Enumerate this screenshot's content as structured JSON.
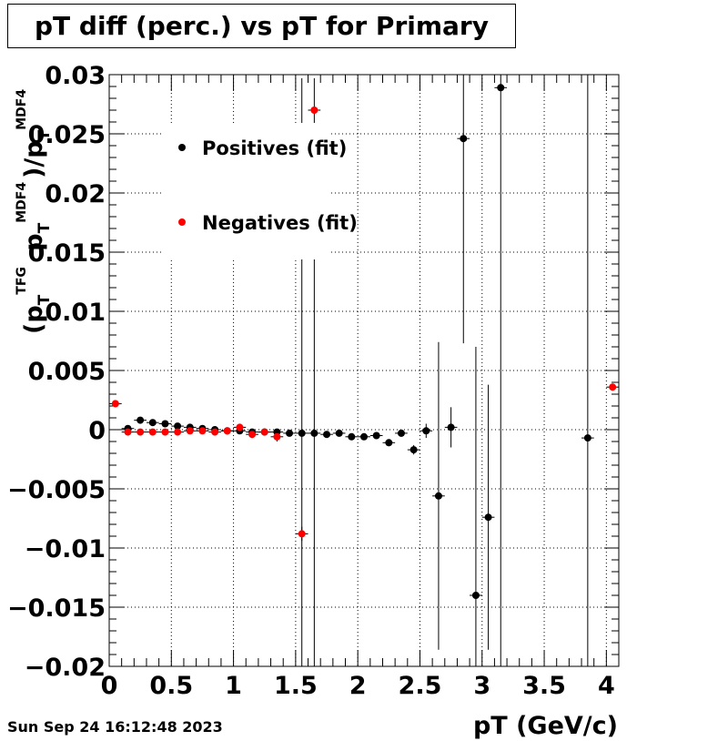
{
  "title": "pT diff (perc.) vs pT for Primary",
  "timestamp": "Sun Sep 24 16:12:48 2023",
  "chart_data": {
    "type": "scatter",
    "title": "pT diff (perc.) vs pT for Primary",
    "xlabel": "pT (GeV/c)",
    "ylabel": "(pT TFG - pT MDF4)/pT MDF4",
    "xlim": [
      0,
      4.1
    ],
    "ylim": [
      -0.02,
      0.03
    ],
    "x_ticks": [
      "0",
      "0.5",
      "1",
      "1.5",
      "2",
      "2.5",
      "3",
      "3.5",
      "4"
    ],
    "y_ticks": [
      "−0.02",
      "−0.015",
      "−0.01",
      "−0.005",
      "0",
      "0.005",
      "0.01",
      "0.015",
      "0.02",
      "0.025",
      "0.03"
    ],
    "grid": true,
    "legend_position": "top-left",
    "series": [
      {
        "name": "Positives (fit)",
        "color": "#000000",
        "points": [
          {
            "x": 0.15,
            "y": 0.0001,
            "err": 0.0002
          },
          {
            "x": 0.25,
            "y": 0.0008,
            "err": 0.0002
          },
          {
            "x": 0.35,
            "y": 0.0006,
            "err": 0.0002
          },
          {
            "x": 0.45,
            "y": 0.0005,
            "err": 0.0002
          },
          {
            "x": 0.55,
            "y": 0.0003,
            "err": 0.0002
          },
          {
            "x": 0.65,
            "y": 0.0002,
            "err": 0.0002
          },
          {
            "x": 0.75,
            "y": 0.0001,
            "err": 0.0002
          },
          {
            "x": 0.85,
            "y": 0.0,
            "err": 0.0002
          },
          {
            "x": 0.95,
            "y": -0.0001,
            "err": 0.0002
          },
          {
            "x": 1.05,
            "y": -0.0001,
            "err": 0.0002
          },
          {
            "x": 1.15,
            "y": -0.0002,
            "err": 0.0002
          },
          {
            "x": 1.25,
            "y": -0.0002,
            "err": 0.0002
          },
          {
            "x": 1.35,
            "y": -0.0002,
            "err": 0.0002
          },
          {
            "x": 1.45,
            "y": -0.0003,
            "err": 0.0002
          },
          {
            "x": 1.55,
            "y": -0.0003,
            "err": 0.03
          },
          {
            "x": 1.65,
            "y": -0.0003,
            "err": 0.03
          },
          {
            "x": 1.75,
            "y": -0.0004,
            "err": 0.0002
          },
          {
            "x": 1.85,
            "y": -0.0003,
            "err": 0.0002
          },
          {
            "x": 1.95,
            "y": -0.0006,
            "err": 0.0002
          },
          {
            "x": 2.05,
            "y": -0.0006,
            "err": 0.0002
          },
          {
            "x": 2.15,
            "y": -0.0005,
            "err": 0.0002
          },
          {
            "x": 2.25,
            "y": -0.0011,
            "err": 0.0003
          },
          {
            "x": 2.35,
            "y": -0.0003,
            "err": 0.0003
          },
          {
            "x": 2.45,
            "y": -0.0017,
            "err": 0.0004
          },
          {
            "x": 2.55,
            "y": -0.0001,
            "err": 0.0006
          },
          {
            "x": 2.65,
            "y": -0.0056,
            "err": 0.013
          },
          {
            "x": 2.75,
            "y": 0.0002,
            "err": 0.0017
          },
          {
            "x": 2.85,
            "y": 0.0246,
            "err": 0.0173
          },
          {
            "x": 2.95,
            "y": -0.014,
            "err": 0.021
          },
          {
            "x": 3.05,
            "y": -0.0074,
            "err": 0.0112
          },
          {
            "x": 3.15,
            "y": 0.0289,
            "err": 0.05
          },
          {
            "x": 3.85,
            "y": -0.0007,
            "err": 0.05
          }
        ]
      },
      {
        "name": "Negatives (fit)",
        "color": "#ff0000",
        "points": [
          {
            "x": 0.05,
            "y": 0.0022,
            "err": 0.0003
          },
          {
            "x": 0.15,
            "y": -0.0002,
            "err": 0.0002
          },
          {
            "x": 0.25,
            "y": -0.0002,
            "err": 0.0002
          },
          {
            "x": 0.35,
            "y": -0.0002,
            "err": 0.0002
          },
          {
            "x": 0.45,
            "y": -0.0002,
            "err": 0.0002
          },
          {
            "x": 0.55,
            "y": -0.0002,
            "err": 0.0002
          },
          {
            "x": 0.65,
            "y": -0.0001,
            "err": 0.0002
          },
          {
            "x": 0.75,
            "y": -0.0001,
            "err": 0.0002
          },
          {
            "x": 0.85,
            "y": -0.0002,
            "err": 0.0002
          },
          {
            "x": 0.95,
            "y": -0.0001,
            "err": 0.0002
          },
          {
            "x": 1.05,
            "y": 0.0002,
            "err": 0.0002
          },
          {
            "x": 1.15,
            "y": -0.0004,
            "err": 0.0003
          },
          {
            "x": 1.25,
            "y": -0.0002,
            "err": 0.0003
          },
          {
            "x": 1.35,
            "y": -0.0006,
            "err": 0.0004
          },
          {
            "x": 1.55,
            "y": -0.0088,
            "err": 0.0006
          },
          {
            "x": 1.65,
            "y": 0.027,
            "err": 0.0003
          },
          {
            "x": 4.05,
            "y": 0.0036,
            "err": 0.0003
          }
        ]
      }
    ]
  }
}
